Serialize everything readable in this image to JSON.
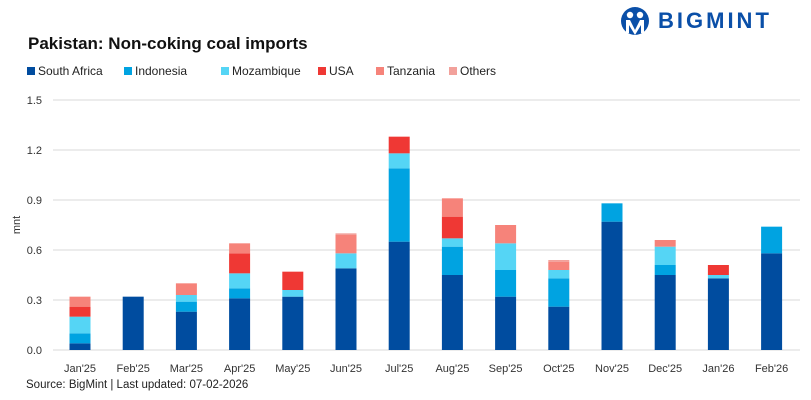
{
  "logo": {
    "text": "BIGMINT"
  },
  "source": "Source: BigMint | Last updated: 07-02-2026",
  "chart_data": {
    "type": "bar",
    "stacked": true,
    "title": "Pakistan: Non-coking coal imports",
    "ylabel": "mnt",
    "xlabel": "",
    "ylim": [
      0,
      1.5
    ],
    "yticks": [
      "0.0",
      "0.3",
      "0.6",
      "0.9",
      "1.2",
      "1.5"
    ],
    "grid": true,
    "legend_position": "top-left",
    "categories": [
      "Jan'25",
      "Feb'25",
      "Mar'25",
      "Apr'25",
      "May'25",
      "Jun'25",
      "Jul'25",
      "Aug'25",
      "Sep'25",
      "Oct'25",
      "Nov'25",
      "Dec'25",
      "Jan'26",
      "Feb'26"
    ],
    "series": [
      {
        "name": "South Africa",
        "color": "#004C9F",
        "values": [
          0.04,
          0.32,
          0.23,
          0.31,
          0.32,
          0.49,
          0.65,
          0.45,
          0.32,
          0.26,
          0.77,
          0.45,
          0.43,
          0.58
        ]
      },
      {
        "name": "Indonesia",
        "color": "#00A3E1",
        "values": [
          0.06,
          0,
          0.06,
          0.06,
          0,
          0,
          0.44,
          0.17,
          0.16,
          0.17,
          0.11,
          0.06,
          0,
          0.16
        ]
      },
      {
        "name": "Mozambique",
        "color": "#55D5F5",
        "values": [
          0.1,
          0,
          0.04,
          0.09,
          0.04,
          0.09,
          0.09,
          0.05,
          0.16,
          0.05,
          0,
          0.11,
          0.02,
          0
        ]
      },
      {
        "name": "USA",
        "color": "#EF3834",
        "values": [
          0.06,
          0,
          0,
          0.12,
          0.11,
          0,
          0.1,
          0.13,
          0,
          0,
          0,
          0,
          0.06,
          0
        ]
      },
      {
        "name": "Tanzania",
        "color": "#F6837A",
        "values": [
          0.06,
          0,
          0.07,
          0.06,
          0,
          0.11,
          0,
          0.11,
          0.11,
          0.05,
          0,
          0.04,
          0,
          0
        ]
      },
      {
        "name": "Others",
        "color": "#F2A19B",
        "values": [
          0,
          0,
          0,
          0,
          0,
          0.01,
          0,
          0,
          0,
          0.01,
          0,
          0,
          0,
          0
        ]
      }
    ]
  }
}
